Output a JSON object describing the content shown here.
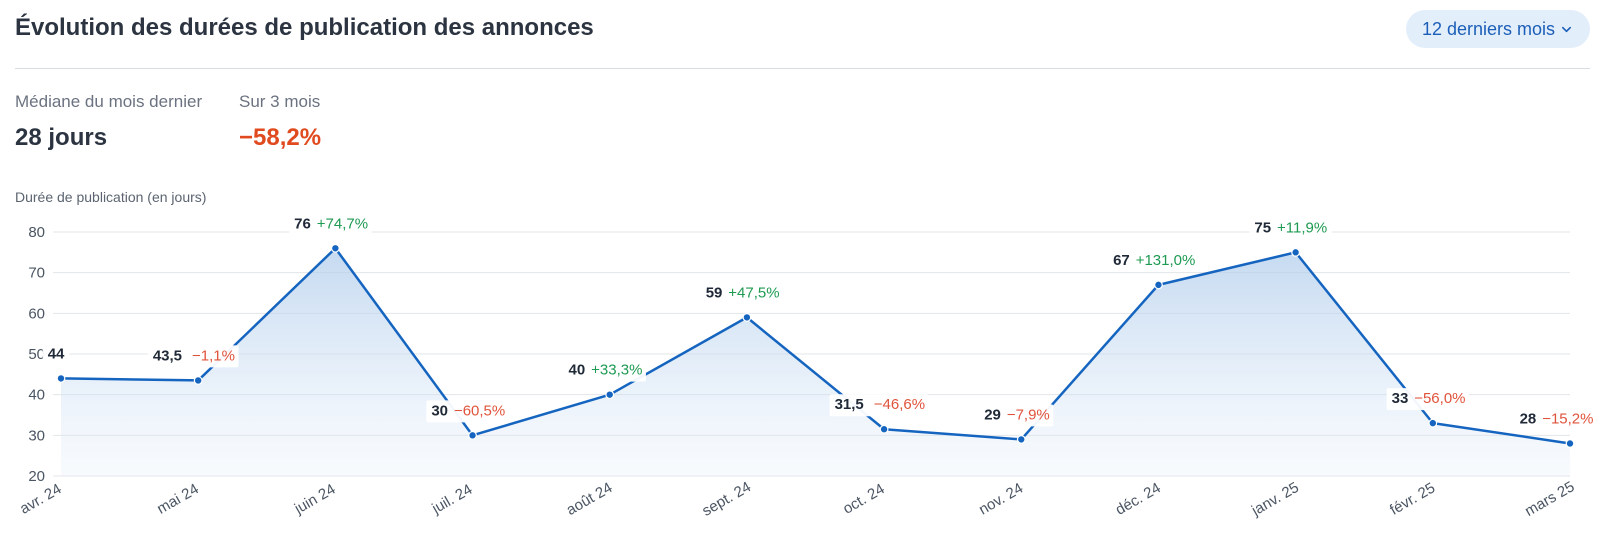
{
  "header": {
    "title": "Évolution des durées de publication des annonces",
    "period_select": "12 derniers mois",
    "chevron_icon": "chevron-down-icon"
  },
  "kpis": {
    "median": {
      "label": "Médiane du mois dernier",
      "value": "28 jours"
    },
    "three_months": {
      "label": "Sur 3 mois",
      "value": "−58,2%"
    }
  },
  "colors": {
    "line": "#1565c0",
    "positive": "#1e9a52",
    "negative": "#e0533b",
    "accent_negative_kpi": "#e04a1f",
    "select_bg": "#e3eefb"
  },
  "chart_data": {
    "type": "area",
    "ylabel": "Durée de publication (en jours)",
    "ylim": [
      20,
      80
    ],
    "yticks": [
      20,
      30,
      40,
      50,
      60,
      70,
      80
    ],
    "grid": true,
    "categories": [
      "avr. 24",
      "mai 24",
      "juin 24",
      "juil. 24",
      "août 24",
      "sept. 24",
      "oct. 24",
      "nov. 24",
      "déc. 24",
      "janv. 25",
      "févr. 25",
      "mars 25"
    ],
    "series": [
      {
        "values": [
          44,
          43.5,
          76,
          30,
          40,
          59,
          31.5,
          29,
          67,
          75,
          33,
          28
        ],
        "value_labels": [
          "44",
          "43,5",
          "76",
          "30",
          "40",
          "59",
          "31,5",
          "29",
          "67",
          "75",
          "33",
          "28"
        ],
        "change_labels": [
          "",
          "−1,1%",
          "+74,7%",
          "−60,5%",
          "+33,3%",
          "+47,5%",
          "−46,6%",
          "−7,9%",
          "+131,0%",
          "+11,9%",
          "−56,0%",
          "−15,2%"
        ]
      }
    ]
  }
}
